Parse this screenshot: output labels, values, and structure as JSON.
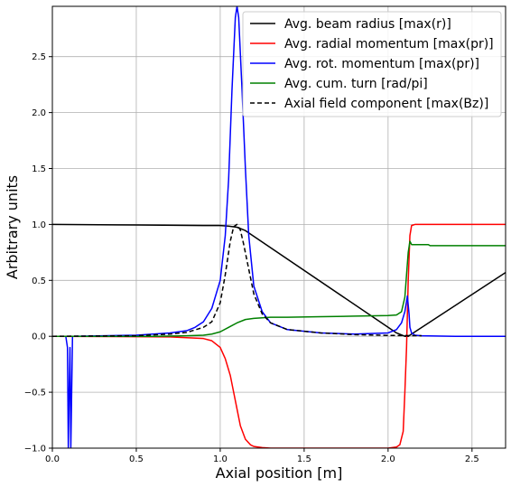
{
  "chart_data": {
    "type": "line",
    "title": "",
    "xlabel": "Axial position [m]",
    "ylabel": "Arbitrary units",
    "xlim": [
      0.0,
      2.7
    ],
    "ylim": [
      -1.0,
      2.95
    ],
    "xticks": [
      0.0,
      0.5,
      1.0,
      1.5,
      2.0,
      2.5
    ],
    "xtick_labels": [
      "0.0",
      "0.5",
      "1.0",
      "1.5",
      "2.0",
      "2.5"
    ],
    "yticks": [
      -1.0,
      -0.5,
      0.0,
      0.5,
      1.0,
      1.5,
      2.0,
      2.5
    ],
    "ytick_labels": [
      "−1.0",
      "−0.5",
      "0.0",
      "0.5",
      "1.0",
      "1.5",
      "2.0",
      "2.5"
    ],
    "grid": true,
    "legend_position": "top-right",
    "series": [
      {
        "name": "Avg. beam radius [max(r)]",
        "color": "#000000",
        "dash": "solid",
        "x": [
          0.0,
          0.5,
          0.9,
          1.0,
          1.05,
          1.1,
          1.15,
          2.05,
          2.1,
          2.12,
          2.15,
          2.7
        ],
        "y": [
          1.0,
          0.995,
          0.99,
          0.99,
          0.985,
          0.975,
          0.945,
          0.03,
          0.0,
          0.0,
          0.03,
          0.57
        ]
      },
      {
        "name": "Avg. radial momentum [max(pr)]",
        "color": "#ff0000",
        "dash": "solid",
        "x": [
          0.0,
          0.7,
          0.9,
          0.95,
          1.0,
          1.03,
          1.06,
          1.08,
          1.1,
          1.12,
          1.15,
          1.18,
          1.2,
          1.25,
          1.3,
          1.5,
          2.0,
          2.05,
          2.07,
          2.09,
          2.1,
          2.11,
          2.12,
          2.13,
          2.14,
          2.16,
          2.2,
          2.7
        ],
        "y": [
          0.0,
          -0.005,
          -0.02,
          -0.04,
          -0.1,
          -0.2,
          -0.35,
          -0.5,
          -0.65,
          -0.8,
          -0.92,
          -0.97,
          -0.985,
          -0.995,
          -1.0,
          -1.0,
          -1.0,
          -0.99,
          -0.97,
          -0.85,
          -0.5,
          -0.1,
          0.5,
          0.9,
          0.99,
          1.0,
          1.0,
          1.0
        ]
      },
      {
        "name": "Avg. rot. momentum [max(pr)]",
        "color": "#0000ff",
        "dash": "solid",
        "x": [
          0.0,
          0.08,
          0.09,
          0.095,
          0.1,
          0.105,
          0.11,
          0.12,
          0.3,
          0.5,
          0.7,
          0.8,
          0.85,
          0.9,
          0.95,
          1.0,
          1.03,
          1.05,
          1.07,
          1.09,
          1.1,
          1.11,
          1.13,
          1.15,
          1.17,
          1.2,
          1.25,
          1.3,
          1.4,
          1.6,
          1.8,
          2.0,
          2.05,
          2.08,
          2.1,
          2.115,
          2.125,
          2.13,
          2.14,
          2.16,
          2.2,
          2.4,
          2.7
        ],
        "y": [
          0.0,
          0.0,
          -0.1,
          -1.0,
          -0.5,
          -0.1,
          -1.0,
          0.0,
          0.005,
          0.01,
          0.03,
          0.05,
          0.08,
          0.13,
          0.25,
          0.5,
          0.9,
          1.4,
          2.2,
          2.85,
          2.95,
          2.85,
          2.2,
          1.5,
          0.9,
          0.45,
          0.22,
          0.12,
          0.06,
          0.03,
          0.02,
          0.03,
          0.06,
          0.12,
          0.22,
          0.36,
          0.2,
          0.08,
          0.03,
          0.01,
          0.005,
          0.0,
          0.0
        ]
      },
      {
        "name": "Avg. cum. turn [rad/pi]",
        "color": "#008000",
        "dash": "solid",
        "x": [
          0.0,
          0.6,
          0.8,
          0.9,
          0.95,
          1.0,
          1.05,
          1.1,
          1.15,
          1.2,
          1.3,
          1.4,
          1.6,
          1.8,
          2.0,
          2.05,
          2.08,
          2.1,
          2.11,
          2.12,
          2.13,
          2.14,
          2.15,
          2.2,
          2.24,
          2.25,
          2.4,
          2.7
        ],
        "y": [
          0.0,
          0.0,
          0.005,
          0.01,
          0.02,
          0.04,
          0.08,
          0.12,
          0.15,
          0.16,
          0.17,
          0.17,
          0.175,
          0.18,
          0.185,
          0.19,
          0.22,
          0.35,
          0.55,
          0.75,
          0.85,
          0.82,
          0.82,
          0.82,
          0.82,
          0.81,
          0.81,
          0.81
        ]
      },
      {
        "name": "Axial field component [max(Bz)]",
        "color": "#000000",
        "dash": "dashed",
        "x": [
          0.0,
          0.5,
          0.7,
          0.8,
          0.9,
          0.95,
          1.0,
          1.03,
          1.06,
          1.08,
          1.1,
          1.12,
          1.14,
          1.17,
          1.2,
          1.25,
          1.3,
          1.4,
          1.6,
          1.8,
          2.0,
          2.2
        ],
        "y": [
          0.0,
          0.005,
          0.02,
          0.035,
          0.08,
          0.13,
          0.3,
          0.55,
          0.85,
          0.98,
          1.0,
          0.95,
          0.82,
          0.6,
          0.38,
          0.2,
          0.12,
          0.06,
          0.03,
          0.015,
          0.008,
          0.005
        ]
      }
    ]
  }
}
